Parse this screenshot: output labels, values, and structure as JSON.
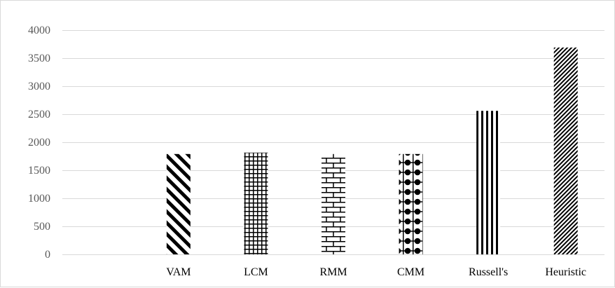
{
  "chart_data": {
    "type": "bar",
    "categories": [
      "",
      "VAM",
      "LCM",
      "RMM",
      "CMM",
      "Russell's",
      "Heuristic"
    ],
    "values": [
      0,
      1790,
      1815,
      1790,
      1790,
      2560,
      3690
    ],
    "patterns": [
      "none",
      "wide-diagonal-stripes",
      "grid",
      "bricks",
      "dots-on-grid",
      "vertical-stripes",
      "fine-diagonal-stripes"
    ],
    "ylim": [
      0,
      4000
    ],
    "yticks": [
      0,
      500,
      1000,
      1500,
      2000,
      2500,
      3000,
      3500,
      4000
    ],
    "title": "",
    "xlabel": "",
    "ylabel": "",
    "grid": true,
    "legend": "none",
    "colors": {
      "bar": "#000000",
      "gridline": "#d9d9d9",
      "tick_text": "#595959",
      "axis": "#d9d9d9"
    }
  }
}
